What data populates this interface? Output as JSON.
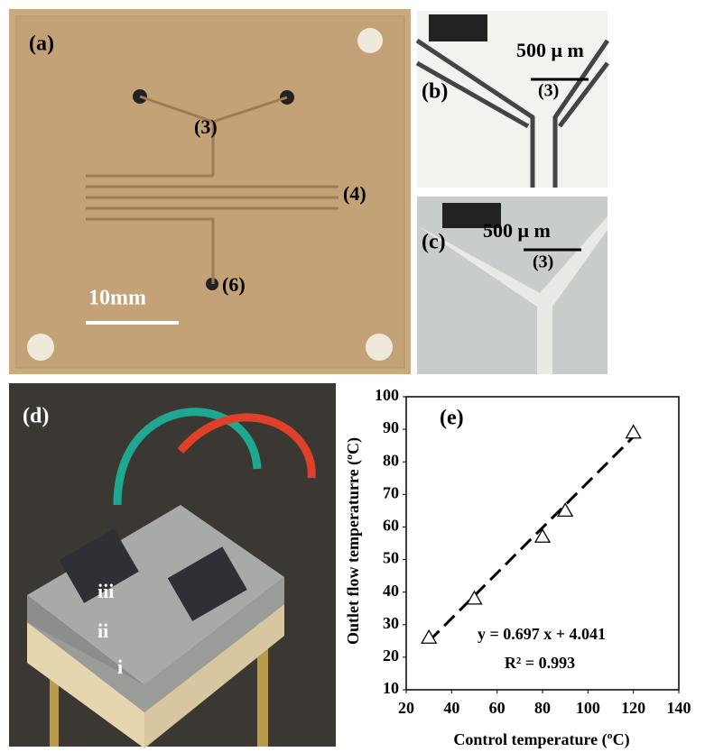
{
  "panels": {
    "a": {
      "label": "(a)",
      "callouts": [
        "(3)",
        "(4)",
        "(6)"
      ],
      "scale_bar": "10mm"
    },
    "b": {
      "label": "(b)",
      "scale_bar": "500 μ m",
      "callout": "(3)"
    },
    "c": {
      "label": "(c)",
      "scale_bar": "500 μ m",
      "callout": "(3)"
    },
    "d": {
      "label": "(d)",
      "layers": [
        "iii",
        "ii",
        "i"
      ]
    }
  },
  "chart_data": {
    "type": "scatter",
    "panel_label": "(e)",
    "xlabel": "Control temperature  (ºC)",
    "ylabel": "Outlet  flow temperaturre (ºC)",
    "x": [
      30,
      50,
      80,
      90,
      120
    ],
    "values": [
      26,
      38,
      57,
      65,
      89
    ],
    "trendline": {
      "x": [
        30,
        120
      ],
      "y": [
        24.95,
        87.68
      ],
      "equation": "y = 0.697 x + 4.041",
      "r2": "R² = 0.993"
    },
    "xlim": [
      20,
      140
    ],
    "xticks": [
      20,
      40,
      60,
      80,
      100,
      120,
      140
    ],
    "ylim": [
      10,
      100
    ],
    "yticks": [
      10,
      20,
      30,
      40,
      50,
      60,
      70,
      80,
      90,
      100
    ],
    "color": "#000000"
  }
}
